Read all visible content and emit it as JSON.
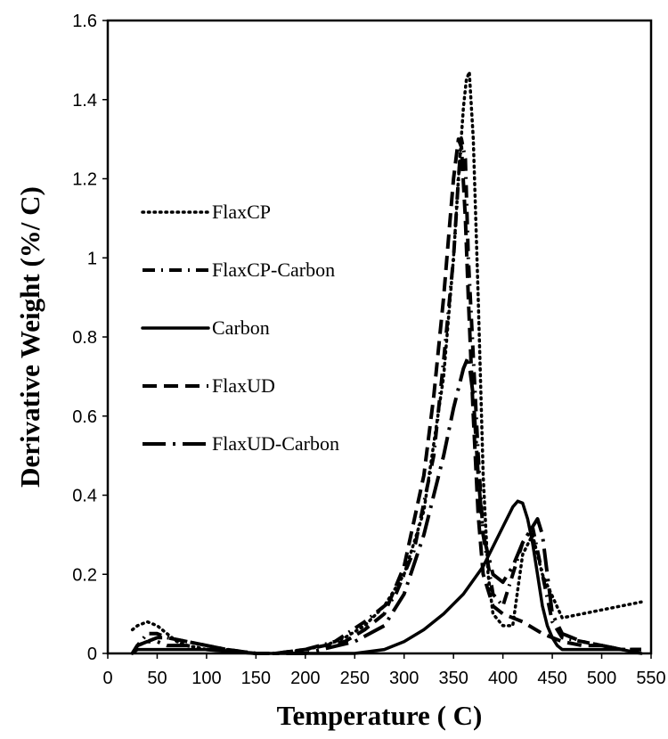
{
  "chart_data": {
    "type": "line",
    "title": "",
    "xlabel": "Temperature ( C)",
    "ylabel": "Derivative Weight (%/ C)",
    "xlim": [
      0,
      550
    ],
    "ylim": [
      0,
      1.6
    ],
    "x_ticks": [
      "0",
      "50",
      "100",
      "150",
      "200",
      "250",
      "300",
      "350",
      "400",
      "450",
      "500",
      "550"
    ],
    "y_ticks": [
      "0",
      "0.2",
      "0.4",
      "0.6",
      "0.8",
      "1",
      "1.2",
      "1.4",
      "1.6"
    ],
    "grid": false,
    "legend_position": "left",
    "series": [
      {
        "name": "FlaxCP",
        "style": "dotted",
        "x": [
          25,
          30,
          40,
          50,
          60,
          70,
          80,
          100,
          120,
          150,
          170,
          200,
          220,
          240,
          260,
          280,
          300,
          320,
          340,
          350,
          355,
          360,
          363,
          366,
          370,
          375,
          380,
          385,
          390,
          400,
          410,
          420,
          430,
          440,
          460,
          500,
          540
        ],
        "y": [
          0.06,
          0.07,
          0.08,
          0.07,
          0.05,
          0.03,
          0.02,
          0.01,
          0.01,
          0.0,
          0.0,
          0.01,
          0.02,
          0.04,
          0.07,
          0.12,
          0.2,
          0.36,
          0.7,
          1.0,
          1.2,
          1.38,
          1.45,
          1.47,
          1.3,
          0.9,
          0.45,
          0.2,
          0.1,
          0.07,
          0.07,
          0.25,
          0.3,
          0.2,
          0.09,
          0.11,
          0.13
        ]
      },
      {
        "name": "FlaxCP-Carbon",
        "style": "dash-dot",
        "x": [
          25,
          30,
          40,
          50,
          60,
          80,
          100,
          120,
          150,
          170,
          200,
          230,
          260,
          290,
          310,
          330,
          340,
          350,
          355,
          358,
          362,
          365,
          370,
          375,
          380,
          390,
          400,
          410,
          420,
          430,
          440,
          450,
          460,
          480,
          500,
          520,
          540
        ],
        "y": [
          0.0,
          0.02,
          0.05,
          0.05,
          0.04,
          0.03,
          0.02,
          0.01,
          0.0,
          0.0,
          0.01,
          0.03,
          0.08,
          0.14,
          0.26,
          0.5,
          0.74,
          1.0,
          1.2,
          1.3,
          1.25,
          1.0,
          0.75,
          0.5,
          0.3,
          0.15,
          0.12,
          0.2,
          0.28,
          0.32,
          0.2,
          0.08,
          0.04,
          0.03,
          0.02,
          0.01,
          0.01
        ]
      },
      {
        "name": "Carbon",
        "style": "solid",
        "x": [
          25,
          30,
          40,
          50,
          60,
          80,
          100,
          150,
          200,
          250,
          280,
          300,
          320,
          340,
          360,
          380,
          400,
          410,
          415,
          420,
          425,
          430,
          435,
          440,
          445,
          450,
          455,
          460,
          470,
          480,
          500,
          520,
          540
        ],
        "y": [
          0.0,
          0.01,
          0.01,
          0.01,
          0.01,
          0.01,
          0.01,
          0.0,
          0.0,
          0.0,
          0.01,
          0.03,
          0.06,
          0.1,
          0.15,
          0.22,
          0.32,
          0.37,
          0.385,
          0.38,
          0.34,
          0.28,
          0.2,
          0.12,
          0.07,
          0.04,
          0.02,
          0.01,
          0.01,
          0.01,
          0.01,
          0.01,
          0.0
        ]
      },
      {
        "name": "FlaxUD",
        "style": "dashed",
        "x": [
          25,
          30,
          40,
          50,
          60,
          80,
          100,
          120,
          150,
          170,
          200,
          220,
          240,
          260,
          280,
          300,
          320,
          330,
          340,
          345,
          350,
          355,
          358,
          362,
          365,
          370,
          375,
          380,
          390,
          400,
          420,
          440,
          460,
          480,
          500,
          520,
          540
        ],
        "y": [
          0.0,
          0.02,
          0.03,
          0.04,
          0.04,
          0.03,
          0.02,
          0.01,
          0.0,
          0.0,
          0.01,
          0.02,
          0.03,
          0.06,
          0.1,
          0.22,
          0.45,
          0.65,
          0.9,
          1.05,
          1.2,
          1.3,
          1.28,
          1.1,
          0.9,
          0.6,
          0.35,
          0.2,
          0.12,
          0.1,
          0.08,
          0.05,
          0.03,
          0.02,
          0.02,
          0.01,
          0.01
        ]
      },
      {
        "name": "FlaxUD-Carbon",
        "style": "long-dash-dot",
        "x": [
          25,
          30,
          40,
          50,
          60,
          80,
          100,
          150,
          200,
          250,
          280,
          300,
          320,
          340,
          350,
          360,
          365,
          370,
          375,
          380,
          390,
          400,
          410,
          420,
          425,
          430,
          435,
          440,
          445,
          450,
          460,
          480,
          500,
          520,
          540
        ],
        "y": [
          0.0,
          0.02,
          0.03,
          0.03,
          0.02,
          0.02,
          0.01,
          0.0,
          0.0,
          0.03,
          0.07,
          0.15,
          0.3,
          0.5,
          0.62,
          0.72,
          0.75,
          0.65,
          0.45,
          0.3,
          0.2,
          0.18,
          0.22,
          0.28,
          0.3,
          0.32,
          0.34,
          0.3,
          0.2,
          0.1,
          0.05,
          0.03,
          0.02,
          0.01,
          0.01
        ]
      }
    ]
  }
}
